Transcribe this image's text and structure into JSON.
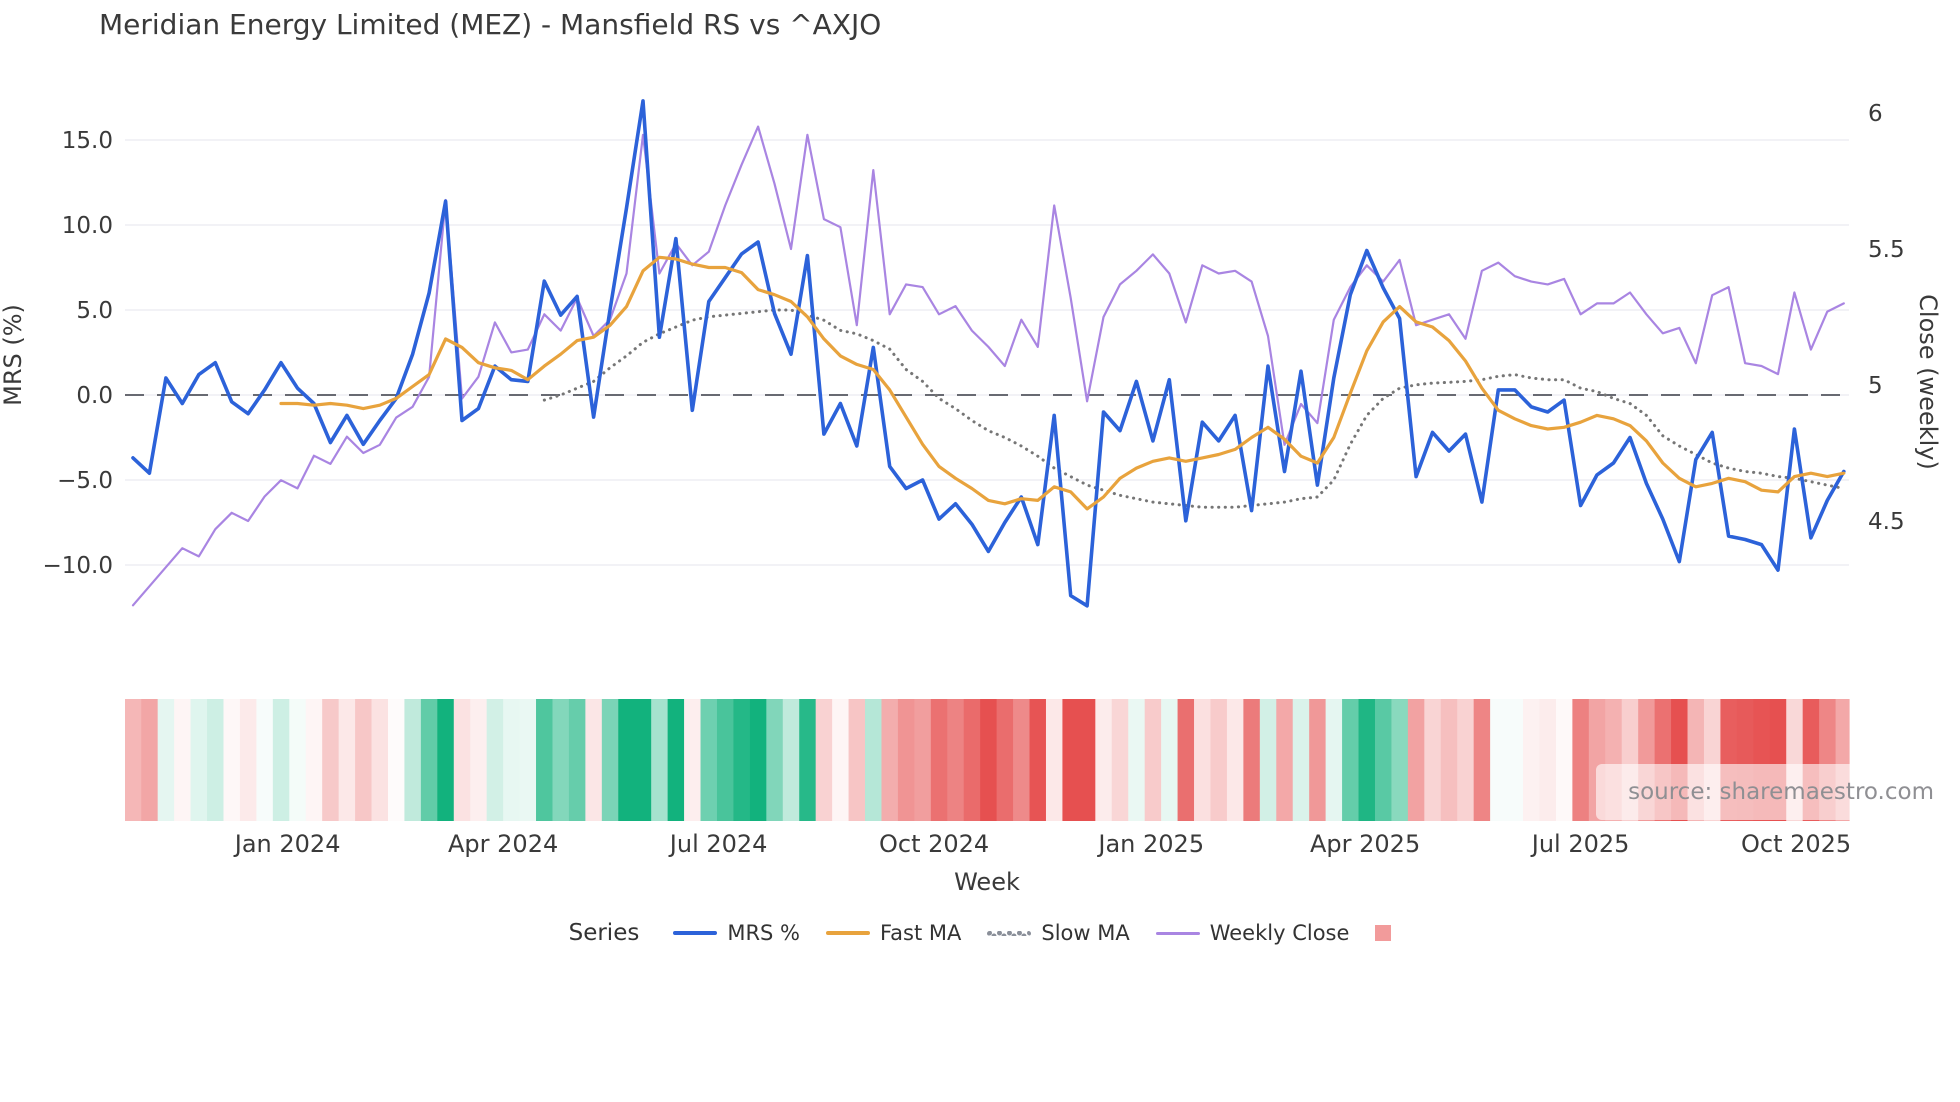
{
  "title": "Meridian Energy Limited (MEZ) - Mansfield RS vs ^AXJO",
  "watermark": "source: sharemaestro.com",
  "axes": {
    "y_left": {
      "label": "MRS (%)",
      "ticks": [
        "15.0",
        "10.0",
        "5.0",
        "0.0",
        "−5.0",
        "−10.0"
      ],
      "tick_values": [
        15,
        10,
        5,
        0,
        -5,
        -10
      ]
    },
    "y_right": {
      "label": "Close (weekly)",
      "ticks": [
        "6",
        "5.5",
        "5",
        "4.5"
      ],
      "tick_values": [
        6,
        5.5,
        5,
        4.5
      ]
    },
    "x": {
      "label": "Week",
      "ticks": [
        {
          "label": "Jan 2024",
          "week": 9.4
        },
        {
          "label": "Apr 2024",
          "week": 22.5
        },
        {
          "label": "Jul 2024",
          "week": 35.6
        },
        {
          "label": "Oct 2024",
          "week": 48.7
        },
        {
          "label": "Jan 2025",
          "week": 61.9
        },
        {
          "label": "Apr 2025",
          "week": 74.9
        },
        {
          "label": "Jul 2025",
          "week": 88.0
        },
        {
          "label": "Oct 2025",
          "week": 101.1
        }
      ]
    }
  },
  "legend": {
    "title": "Series",
    "items": [
      {
        "label": "MRS %",
        "type": "line",
        "color": "#2c62d9"
      },
      {
        "label": "Fast MA",
        "type": "line",
        "color": "#e8a33d"
      },
      {
        "label": "Slow MA",
        "type": "dotted",
        "color": "#8a8f99"
      },
      {
        "label": "Weekly Close",
        "type": "line",
        "color": "#a985e2"
      },
      {
        "label": "",
        "type": "square",
        "color": "#f29b9b"
      }
    ]
  },
  "colors": {
    "mrs": "#2c62d9",
    "fast_ma": "#e8a33d",
    "slow_ma": "#767676",
    "weekly_close": "#a985e2",
    "grid": "#e9e9f1",
    "zero_line": "#54565f",
    "heat_pos": "#12b27d",
    "heat_neg": "#e65050",
    "text": "#3a3a3a"
  },
  "chart_data": {
    "type": "line",
    "x_unit": "weekly index, Nov 2023 - Nov 2025",
    "n_points": 105,
    "ylim_left": [
      -13.5,
      18.5
    ],
    "ylim_right_labels": [
      4.5,
      6
    ],
    "grid": "horizontal only, plus dashed zero line",
    "legend_position": "bottom center",
    "series": [
      {
        "name": "MRS %",
        "axis": "left",
        "style": "solid",
        "width": 3.6,
        "values": [
          -3.7,
          -4.6,
          1.0,
          -0.5,
          1.2,
          1.9,
          -0.4,
          -1.1,
          0.3,
          1.9,
          0.4,
          -0.5,
          -2.8,
          -1.2,
          -2.9,
          -1.5,
          -0.2,
          2.4,
          6.0,
          11.4,
          -1.5,
          -0.8,
          1.7,
          0.9,
          0.8,
          6.7,
          4.7,
          5.8,
          -1.3,
          5.0,
          11.0,
          17.3,
          3.4,
          9.2,
          -0.9,
          5.5,
          6.9,
          8.3,
          9.0,
          4.8,
          2.4,
          8.2,
          -2.3,
          -0.5,
          -3.0,
          2.8,
          -4.2,
          -5.5,
          -5.0,
          -7.3,
          -6.4,
          -7.6,
          -9.2,
          -7.5,
          -6.0,
          -8.8,
          -1.2,
          -11.8,
          -12.4,
          -1.0,
          -2.1,
          0.8,
          -2.7,
          0.9,
          -7.4,
          -1.6,
          -2.7,
          -1.2,
          -6.8,
          1.7,
          -4.5,
          1.4,
          -5.3,
          1.0,
          5.9,
          8.5,
          6.3,
          4.5,
          -4.8,
          -2.2,
          -3.3,
          -2.3,
          -6.3,
          0.3,
          0.3,
          -0.7,
          -1.0,
          -0.3,
          -6.5,
          -4.7,
          -4.0,
          -2.5,
          -5.2,
          -7.3,
          -9.8,
          -3.8,
          -2.2,
          -8.3,
          -8.5,
          -8.8,
          -10.3,
          -2.0,
          -8.4,
          -6.2,
          -4.5
        ]
      },
      {
        "name": "Fast MA",
        "axis": "left",
        "style": "solid",
        "width": 3.2,
        "values": [
          null,
          null,
          null,
          null,
          null,
          null,
          null,
          null,
          null,
          -0.5,
          -0.5,
          -0.6,
          -0.5,
          -0.6,
          -0.8,
          -0.6,
          -0.2,
          0.5,
          1.2,
          3.3,
          2.8,
          1.9,
          1.6,
          1.45,
          0.9,
          1.7,
          2.4,
          3.2,
          3.4,
          4.1,
          5.2,
          7.3,
          8.1,
          8.0,
          7.7,
          7.5,
          7.5,
          7.2,
          6.2,
          5.9,
          5.5,
          4.6,
          3.3,
          2.3,
          1.8,
          1.5,
          0.3,
          -1.3,
          -2.9,
          -4.2,
          -4.9,
          -5.5,
          -6.2,
          -6.4,
          -6.1,
          -6.2,
          -5.4,
          -5.7,
          -6.7,
          -6.0,
          -4.9,
          -4.3,
          -3.9,
          -3.7,
          -3.9,
          -3.7,
          -3.5,
          -3.2,
          -2.5,
          -1.9,
          -2.6,
          -3.6,
          -4.0,
          -2.5,
          0.1,
          2.6,
          4.3,
          5.2,
          4.3,
          4.0,
          3.2,
          2.0,
          0.4,
          -0.9,
          -1.4,
          -1.8,
          -2.0,
          -1.9,
          -1.6,
          -1.2,
          -1.4,
          -1.8,
          -2.7,
          -4.0,
          -4.9,
          -5.4,
          -5.2,
          -4.9,
          -5.1,
          -5.6,
          -5.7,
          -4.8,
          -4.6,
          -4.8,
          -4.6
        ]
      },
      {
        "name": "Slow MA",
        "axis": "left",
        "style": "dotted",
        "width": 3.0,
        "values": [
          null,
          null,
          null,
          null,
          null,
          null,
          null,
          null,
          null,
          null,
          null,
          null,
          null,
          null,
          null,
          null,
          null,
          null,
          null,
          null,
          null,
          null,
          null,
          null,
          null,
          -0.3,
          0.0,
          0.4,
          0.8,
          1.6,
          2.3,
          3.1,
          3.6,
          4.0,
          4.4,
          4.6,
          4.7,
          4.8,
          4.9,
          5.0,
          5.0,
          4.7,
          4.4,
          3.8,
          3.6,
          3.2,
          2.7,
          1.5,
          0.8,
          -0.2,
          -0.8,
          -1.5,
          -2.1,
          -2.5,
          -3.0,
          -3.6,
          -4.3,
          -4.8,
          -5.3,
          -5.6,
          -5.9,
          -6.1,
          -6.3,
          -6.4,
          -6.5,
          -6.6,
          -6.6,
          -6.6,
          -6.5,
          -6.4,
          -6.3,
          -6.1,
          -6.0,
          -5.0,
          -2.9,
          -1.2,
          -0.2,
          0.4,
          0.6,
          0.7,
          0.75,
          0.8,
          0.9,
          1.1,
          1.2,
          1.0,
          0.9,
          0.9,
          0.4,
          0.2,
          -0.2,
          -0.5,
          -1.2,
          -2.4,
          -3.0,
          -3.5,
          -4.0,
          -4.3,
          -4.5,
          -4.6,
          -4.8,
          -4.9,
          -5.1,
          -5.3,
          -5.5
        ]
      },
      {
        "name": "Weekly Close",
        "axis": "right",
        "style": "solid",
        "width": 2.2,
        "values": [
          4.19,
          4.26,
          4.33,
          4.4,
          4.37,
          4.47,
          4.53,
          4.5,
          4.59,
          4.65,
          4.62,
          4.74,
          4.71,
          4.81,
          4.75,
          4.78,
          4.88,
          4.92,
          5.03,
          5.68,
          4.95,
          5.03,
          5.23,
          5.12,
          5.13,
          5.26,
          5.2,
          5.32,
          5.18,
          5.24,
          5.41,
          5.92,
          5.41,
          5.52,
          5.44,
          5.49,
          5.66,
          5.81,
          5.95,
          5.74,
          5.5,
          5.92,
          5.61,
          5.58,
          5.22,
          5.79,
          5.26,
          5.37,
          5.36,
          5.26,
          5.29,
          5.2,
          5.14,
          5.07,
          5.24,
          5.14,
          5.66,
          5.32,
          4.94,
          5.25,
          5.37,
          5.42,
          5.48,
          5.41,
          5.23,
          5.44,
          5.41,
          5.42,
          5.38,
          5.18,
          4.78,
          4.93,
          4.86,
          5.24,
          5.36,
          5.44,
          5.38,
          5.46,
          5.22,
          5.24,
          5.26,
          5.17,
          5.42,
          5.45,
          5.4,
          5.38,
          5.37,
          5.39,
          5.26,
          5.3,
          5.3,
          5.34,
          5.26,
          5.19,
          5.21,
          5.08,
          5.33,
          5.36,
          5.08,
          5.07,
          5.04,
          5.34,
          5.13,
          5.27,
          5.3
        ]
      }
    ],
    "heatmap_strip": {
      "source_series": "MRS %",
      "colormap": "red-white-green, saturation ~ |MRS|",
      "position": "below chart, shares x axis"
    }
  }
}
